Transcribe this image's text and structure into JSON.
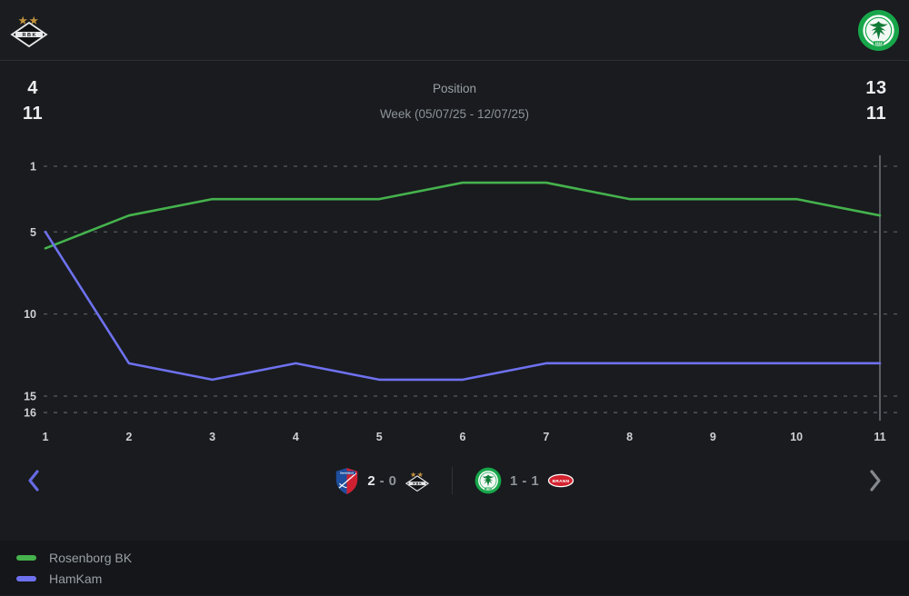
{
  "topbar": {
    "home_team": "Rosenborg BK",
    "away_team": "HamKam"
  },
  "header": {
    "rows": [
      {
        "home": "4",
        "label": "Position",
        "away": "13"
      },
      {
        "home": "11",
        "label": "Week (05/07/25 - 12/07/25)",
        "away": "11"
      }
    ]
  },
  "chart_data": {
    "type": "line",
    "title": "Position",
    "xlabel": "Week",
    "ylabel": "Position",
    "x": [
      1,
      2,
      3,
      4,
      5,
      6,
      7,
      8,
      9,
      10,
      11
    ],
    "y_ticks": [
      1,
      5,
      10,
      15,
      16
    ],
    "ylim": [
      1,
      16
    ],
    "y_inverted": true,
    "grid": "horizontal-dashed",
    "legend_position": "bottom-left",
    "selected_week": 11,
    "series": [
      {
        "name": "Rosenborg BK",
        "color": "#45b24d",
        "values": [
          6,
          4,
          3,
          3,
          3,
          2,
          2,
          3,
          3,
          3,
          4
        ]
      },
      {
        "name": "HamKam",
        "color": "#6e71ee",
        "values": [
          5,
          13,
          14,
          13,
          14,
          14,
          13,
          13,
          13,
          13,
          13
        ]
      }
    ]
  },
  "nav": {
    "matches": [
      {
        "home_team": "Sandefjord",
        "home_score": "2",
        "separator": "-",
        "away_score": "0",
        "away_team": "Rosenborg BK"
      },
      {
        "home_team": "HamKam",
        "home_score": "1",
        "separator": "-",
        "away_score": "1",
        "away_team": "Brann"
      }
    ]
  },
  "legend": {
    "items": [
      {
        "label": "Rosenborg BK",
        "color": "#45b24d"
      },
      {
        "label": "HamKam",
        "color": "#6e71ee"
      }
    ]
  },
  "colors": {
    "rosenborg_line": "#45b24d",
    "hamkam_line": "#6e71ee",
    "gridline": "#575c61",
    "selected_week_line": "#878b8f",
    "star_gold": "#c2923c"
  }
}
